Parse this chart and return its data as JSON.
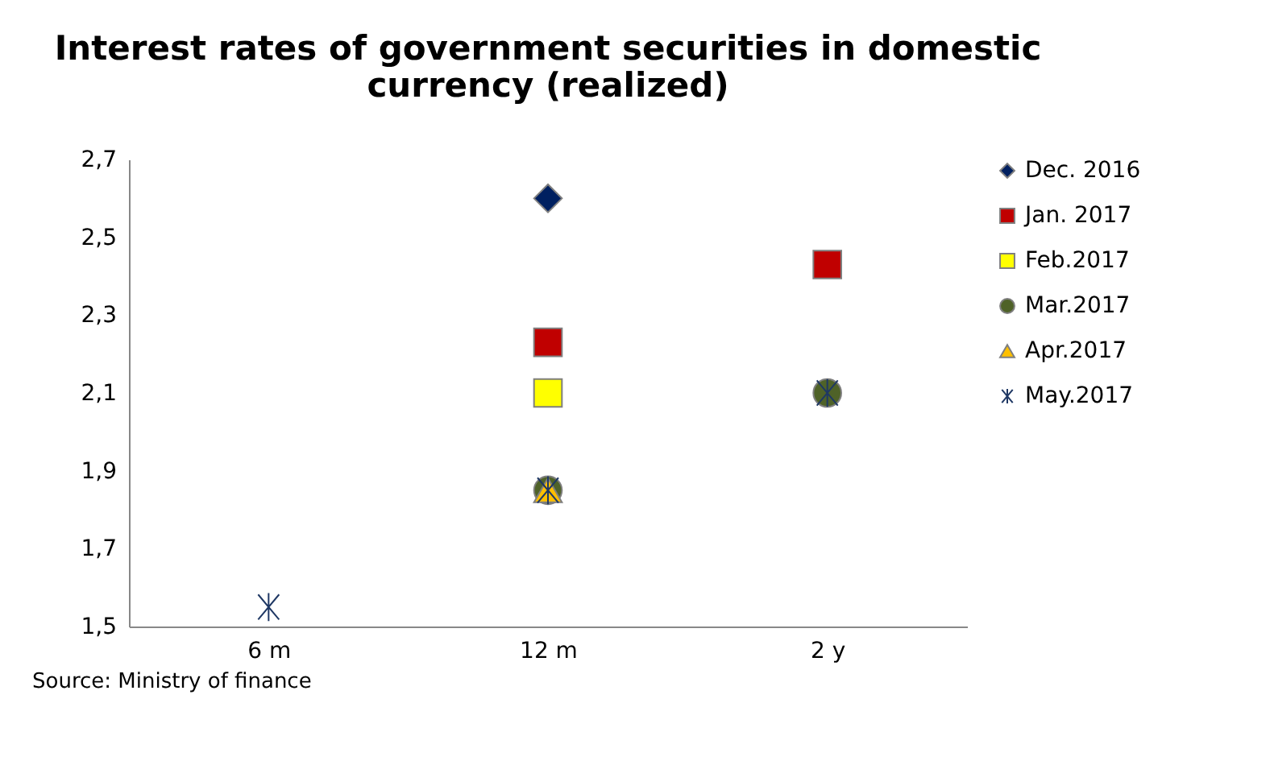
{
  "chart_data": {
    "type": "scatter",
    "title": [
      "Interest rates of government securities in domestic",
      "currency (realized)"
    ],
    "categories": [
      "6 m",
      "12 m",
      "2 y"
    ],
    "series": [
      {
        "name": "Dec. 2016",
        "color": "#002060",
        "marker": "diamond",
        "values": [
          null,
          2.6,
          null
        ]
      },
      {
        "name": "Jan. 2017",
        "color": "#c00000",
        "marker": "square",
        "values": [
          null,
          2.23,
          2.43
        ]
      },
      {
        "name": "Feb.2017",
        "color": "#ffff00",
        "marker": "square",
        "values": [
          null,
          2.1,
          null
        ]
      },
      {
        "name": "Mar.2017",
        "color": "#4f6228",
        "marker": "circle",
        "values": [
          null,
          1.85,
          2.1
        ]
      },
      {
        "name": "Apr.2017",
        "color": "#ffc000",
        "marker": "triangle",
        "values": [
          null,
          1.85,
          null
        ]
      },
      {
        "name": "May.2017",
        "color": "#1f3864",
        "marker": "cross",
        "values": [
          1.55,
          1.85,
          2.1
        ]
      }
    ],
    "ylim": [
      1.5,
      2.7
    ],
    "yticks": [
      {
        "value": 1.5,
        "label": "1,5"
      },
      {
        "value": 1.7,
        "label": "1,7"
      },
      {
        "value": 1.9,
        "label": "1,9"
      },
      {
        "value": 2.1,
        "label": "2,1"
      },
      {
        "value": 2.3,
        "label": "2,3"
      },
      {
        "value": 2.5,
        "label": "2,5"
      },
      {
        "value": 2.7,
        "label": "2,7"
      }
    ],
    "grid": false,
    "legend": "right",
    "annotations": [
      "Source: Ministry of finance"
    ]
  }
}
